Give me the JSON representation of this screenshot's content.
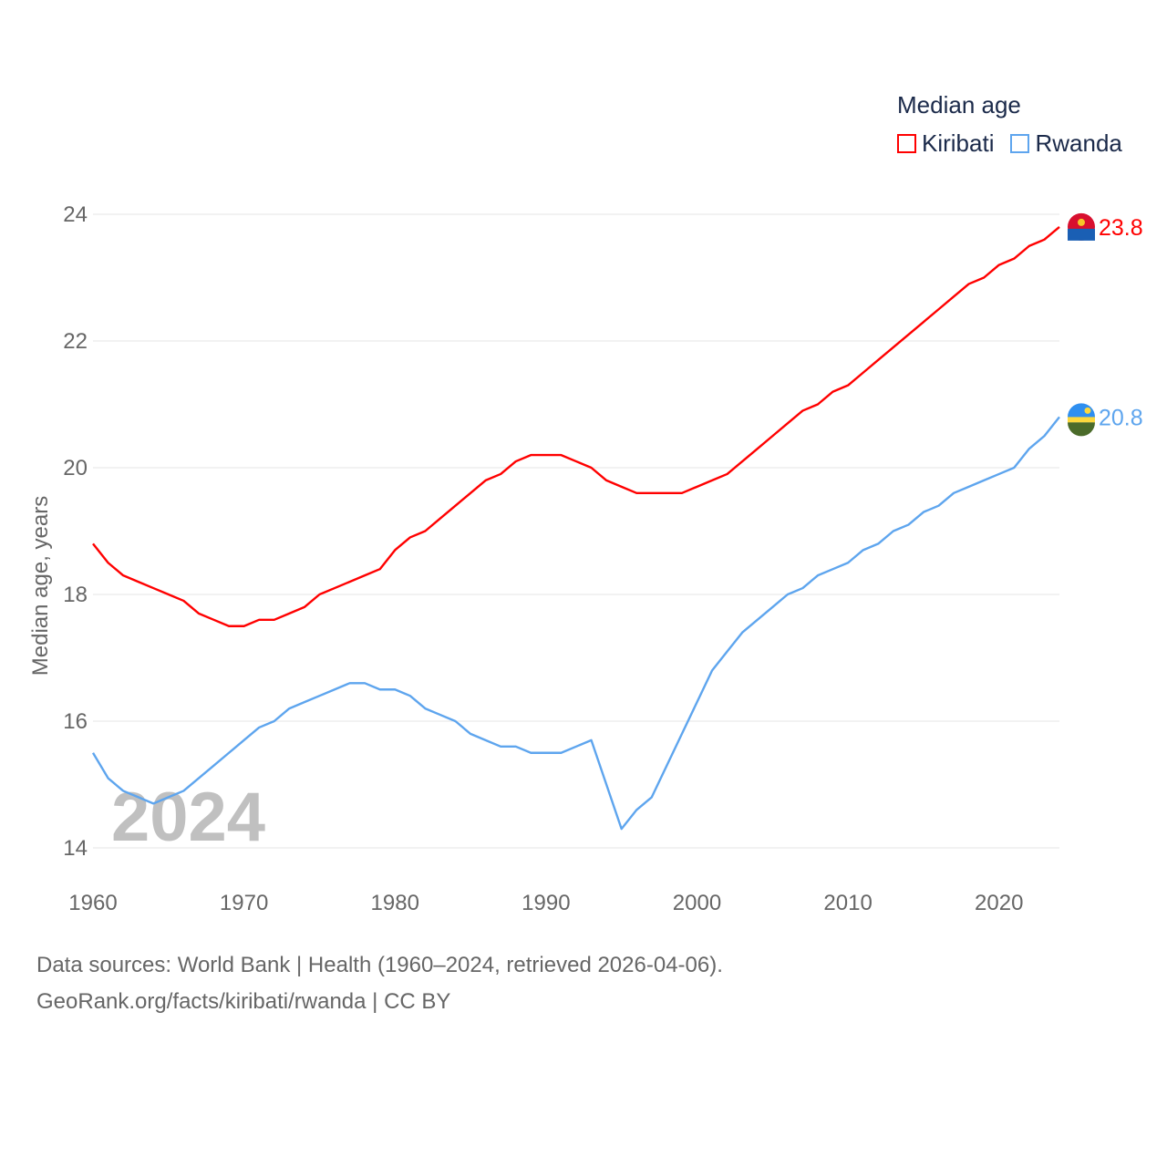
{
  "chart_data": {
    "type": "line",
    "title": "Median age",
    "xlabel": "",
    "ylabel": "Median age, years",
    "xlim": [
      1960,
      2024
    ],
    "ylim": [
      14,
      24
    ],
    "yticks": [
      14,
      16,
      18,
      20,
      22,
      24
    ],
    "xticks": [
      1960,
      1970,
      1980,
      1990,
      2000,
      2010,
      2020
    ],
    "grid": true,
    "legend_position": "top-right",
    "year_watermark": "2024",
    "x_start": 1960,
    "series": [
      {
        "name": "Kiribati",
        "color": "#ff0000",
        "end_label": "23.8",
        "values": [
          18.8,
          18.5,
          18.3,
          18.2,
          18.1,
          18.0,
          17.9,
          17.7,
          17.6,
          17.5,
          17.5,
          17.6,
          17.6,
          17.7,
          17.8,
          18.0,
          18.1,
          18.2,
          18.3,
          18.4,
          18.7,
          18.9,
          19.0,
          19.2,
          19.4,
          19.6,
          19.8,
          19.9,
          20.1,
          20.2,
          20.2,
          20.2,
          20.1,
          20.0,
          19.8,
          19.7,
          19.6,
          19.6,
          19.6,
          19.6,
          19.7,
          19.8,
          19.9,
          20.1,
          20.3,
          20.5,
          20.7,
          20.9,
          21.0,
          21.2,
          21.3,
          21.5,
          21.7,
          21.9,
          22.1,
          22.3,
          22.5,
          22.7,
          22.9,
          23.0,
          23.2,
          23.3,
          23.5,
          23.6,
          23.8
        ]
      },
      {
        "name": "Rwanda",
        "color": "#5ea5ee",
        "end_label": "20.8",
        "values": [
          15.5,
          15.1,
          14.9,
          14.8,
          14.7,
          14.8,
          14.9,
          15.1,
          15.3,
          15.5,
          15.7,
          15.9,
          16.0,
          16.2,
          16.3,
          16.4,
          16.5,
          16.6,
          16.6,
          16.5,
          16.5,
          16.4,
          16.2,
          16.1,
          16.0,
          15.8,
          15.7,
          15.6,
          15.6,
          15.5,
          15.5,
          15.5,
          15.6,
          15.7,
          15.0,
          14.3,
          14.6,
          14.8,
          15.3,
          15.8,
          16.3,
          16.8,
          17.1,
          17.4,
          17.6,
          17.8,
          18.0,
          18.1,
          18.3,
          18.4,
          18.5,
          18.7,
          18.8,
          19.0,
          19.1,
          19.3,
          19.4,
          19.6,
          19.7,
          19.8,
          19.9,
          20.0,
          20.3,
          20.5,
          20.8
        ]
      }
    ]
  },
  "source_line1": "Data sources: World Bank | Health (1960–2024, retrieved 2026-04-06).",
  "source_line2": "GeoRank.org/facts/kiribati/rwanda | CC BY"
}
